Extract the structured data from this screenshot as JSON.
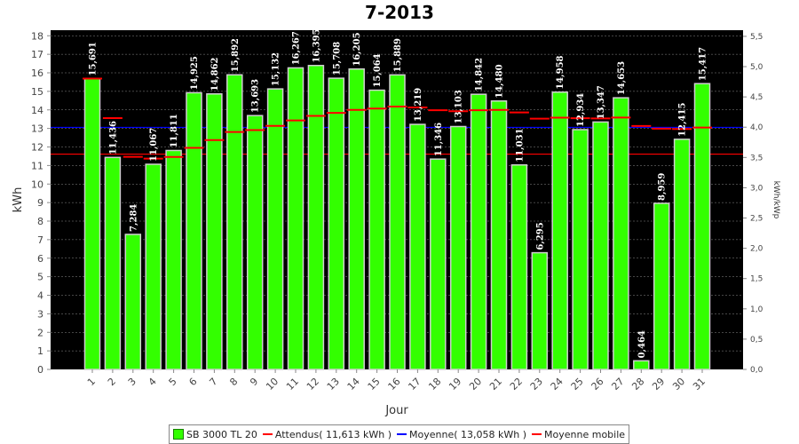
{
  "chart_data": {
    "type": "bar",
    "title": "7-2013",
    "xlabel": "Jour",
    "ylabel": "kWh",
    "y2label": "kWh/kWp",
    "ylim": [
      0,
      18.3
    ],
    "yticks": [
      0,
      1,
      2,
      3,
      4,
      5,
      6,
      7,
      8,
      9,
      10,
      11,
      12,
      13,
      14,
      15,
      16,
      17,
      18
    ],
    "y2ticks": [
      "0,0",
      "0,5",
      "1,0",
      "1,5",
      "2,0",
      "2,5",
      "3,0",
      "3,5",
      "4,0",
      "4,5",
      "5,0",
      "5,5"
    ],
    "y2_per_kwh": 0.3061,
    "grid": true,
    "legend_position": "bottom",
    "categories": [
      "1",
      "2",
      "3",
      "4",
      "5",
      "6",
      "7",
      "8",
      "9",
      "10",
      "11",
      "12",
      "13",
      "14",
      "15",
      "16",
      "17",
      "18",
      "19",
      "20",
      "21",
      "22",
      "23",
      "24",
      "25",
      "26",
      "27",
      "28",
      "29",
      "30",
      "31"
    ],
    "series": [
      {
        "name": "SB 3000 TL 20",
        "type": "bar",
        "values": [
          15.691,
          11.436,
          7.284,
          11.067,
          11.811,
          14.925,
          14.862,
          15.892,
          13.693,
          15.132,
          16.267,
          16.395,
          15.708,
          16.205,
          15.064,
          15.889,
          13.219,
          11.346,
          13.103,
          14.842,
          14.48,
          11.031,
          6.295,
          14.958,
          12.934,
          13.347,
          14.653,
          0.464,
          8.959,
          12.415,
          15.417
        ],
        "labels": [
          "15,691",
          "11,436",
          "7,284",
          "11,067",
          "11,811",
          "14,925",
          "14,862",
          "15,892",
          "13,693",
          "15,132",
          "16,267",
          "16,395",
          "15,708",
          "16,205",
          "15,064",
          "15,889",
          "13,219",
          "11,346",
          "13,103",
          "14,842",
          "14,480",
          "11,031",
          "6,295",
          "14,958",
          "12,934",
          "13,347",
          "14,653",
          "0,464",
          "8,959",
          "12,415",
          "15,417"
        ],
        "color": "#33ff00"
      },
      {
        "name": "Attendus( 11,613 kWh )",
        "type": "hline",
        "value": 11.613,
        "color": "#ff0000"
      },
      {
        "name": "Moyenne( 13,058 kWh )",
        "type": "hline",
        "value": 13.058,
        "color": "#0000ff"
      },
      {
        "name": "Moyenne mobile",
        "type": "step",
        "values": [
          15.691,
          13.56,
          11.47,
          11.37,
          11.46,
          11.95,
          12.37,
          12.81,
          12.91,
          13.14,
          13.43,
          13.68,
          13.84,
          14.0,
          14.07,
          14.18,
          14.13,
          13.98,
          13.93,
          13.98,
          14.0,
          13.86,
          13.53,
          13.58,
          13.55,
          13.54,
          13.59,
          13.13,
          12.99,
          12.97,
          13.05
        ],
        "color": "#ff0000"
      }
    ]
  }
}
